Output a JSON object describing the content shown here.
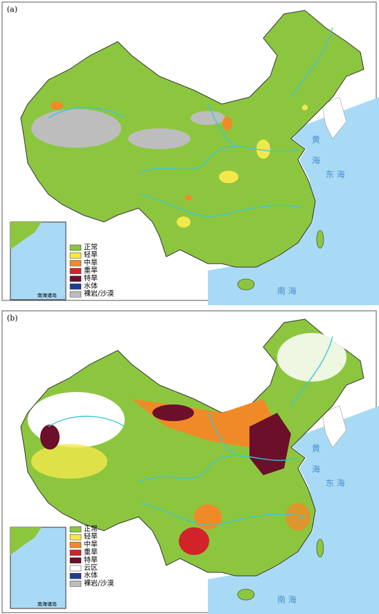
{
  "panels": [
    {
      "label": "(a)",
      "seas": [
        "黄海",
        "东 海",
        "南 海"
      ],
      "inset": "南海诸岛",
      "legend": [
        {
          "name": "正常",
          "color": "#8cc63f"
        },
        {
          "name": "轻旱",
          "color": "#f3e84b"
        },
        {
          "name": "中旱",
          "color": "#f08a28"
        },
        {
          "name": "重旱",
          "color": "#d2232a"
        },
        {
          "name": "特旱",
          "color": "#6b0f2a"
        },
        {
          "name": "水体",
          "color": "#1c3f94"
        },
        {
          "name": "裸岩/沙漠",
          "color": "#bdbdbd"
        }
      ]
    },
    {
      "label": "(b)",
      "seas": [
        "黄海",
        "东 海",
        "南 海"
      ],
      "inset": "南海诸岛",
      "legend": [
        {
          "name": "正常",
          "color": "#8cc63f"
        },
        {
          "name": "轻旱",
          "color": "#f3e84b"
        },
        {
          "name": "中旱",
          "color": "#f08a28"
        },
        {
          "name": "重旱",
          "color": "#d2232a"
        },
        {
          "name": "特旱",
          "color": "#6b0f2a"
        },
        {
          "name": "云区",
          "color": "#ffffff"
        },
        {
          "name": "水体",
          "color": "#1c3f94"
        },
        {
          "name": "裸岩/沙漠",
          "color": "#bdbdbd"
        }
      ]
    }
  ]
}
